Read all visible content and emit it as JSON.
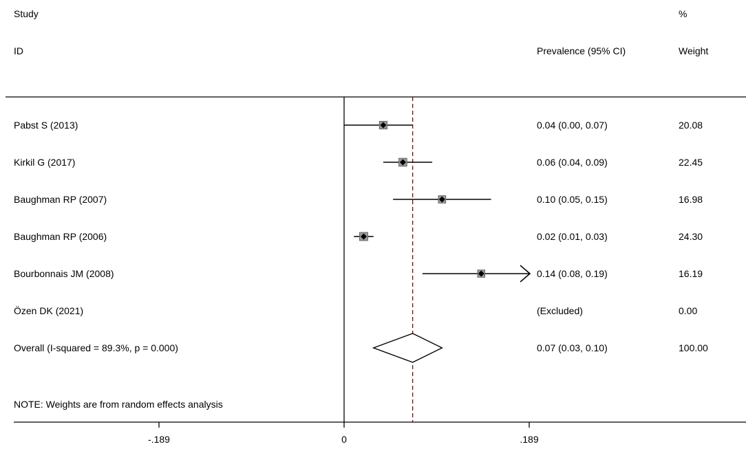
{
  "header": {
    "study_line1": "Study",
    "study_line2": "ID",
    "effect_label": "Prevalence (95% CI)",
    "weight_line1": "%",
    "weight_line2": "Weight"
  },
  "note": "NOTE: Weights are from random effects analysis",
  "chart_data": {
    "type": "forest",
    "xlim": [
      -0.189,
      0.189
    ],
    "ticks": [
      {
        "value": -0.189,
        "label": "-.189"
      },
      {
        "value": 0,
        "label": "0"
      },
      {
        "value": 0.189,
        "label": ".189"
      }
    ],
    "null_line": 0,
    "studies": [
      {
        "id": "Pabst S (2013)",
        "est": 0.04,
        "lo": 0.0,
        "hi": 0.07,
        "ci_text": "0.04 (0.00, 0.07)",
        "weight": 20.08,
        "weight_text": "20.08"
      },
      {
        "id": "Kirkil G (2017)",
        "est": 0.06,
        "lo": 0.04,
        "hi": 0.09,
        "ci_text": "0.06 (0.04, 0.09)",
        "weight": 22.45,
        "weight_text": "22.45"
      },
      {
        "id": "Baughman RP (2007)",
        "est": 0.1,
        "lo": 0.05,
        "hi": 0.15,
        "ci_text": "0.10 (0.05, 0.15)",
        "weight": 16.98,
        "weight_text": "16.98"
      },
      {
        "id": "Baughman RP (2006)",
        "est": 0.02,
        "lo": 0.01,
        "hi": 0.03,
        "ci_text": "0.02 (0.01, 0.03)",
        "weight": 24.3,
        "weight_text": "24.30"
      },
      {
        "id": "Bourbonnais JM (2008)",
        "est": 0.14,
        "lo": 0.08,
        "hi": 0.19,
        "ci_text": "0.14 (0.08, 0.19)",
        "weight": 16.19,
        "weight_text": "16.19",
        "hi_truncated": true
      },
      {
        "id": "Özen DK (2021)",
        "est": null,
        "lo": null,
        "hi": null,
        "ci_text": "(Excluded)",
        "weight": 0.0,
        "weight_text": "0.00"
      }
    ],
    "overall": {
      "label": "Overall  (I-squared = 89.3%, p = 0.000)",
      "est": 0.07,
      "lo": 0.03,
      "hi": 0.1,
      "ci_text": "0.07 (0.03, 0.10)",
      "weight_text": "100.00"
    }
  }
}
